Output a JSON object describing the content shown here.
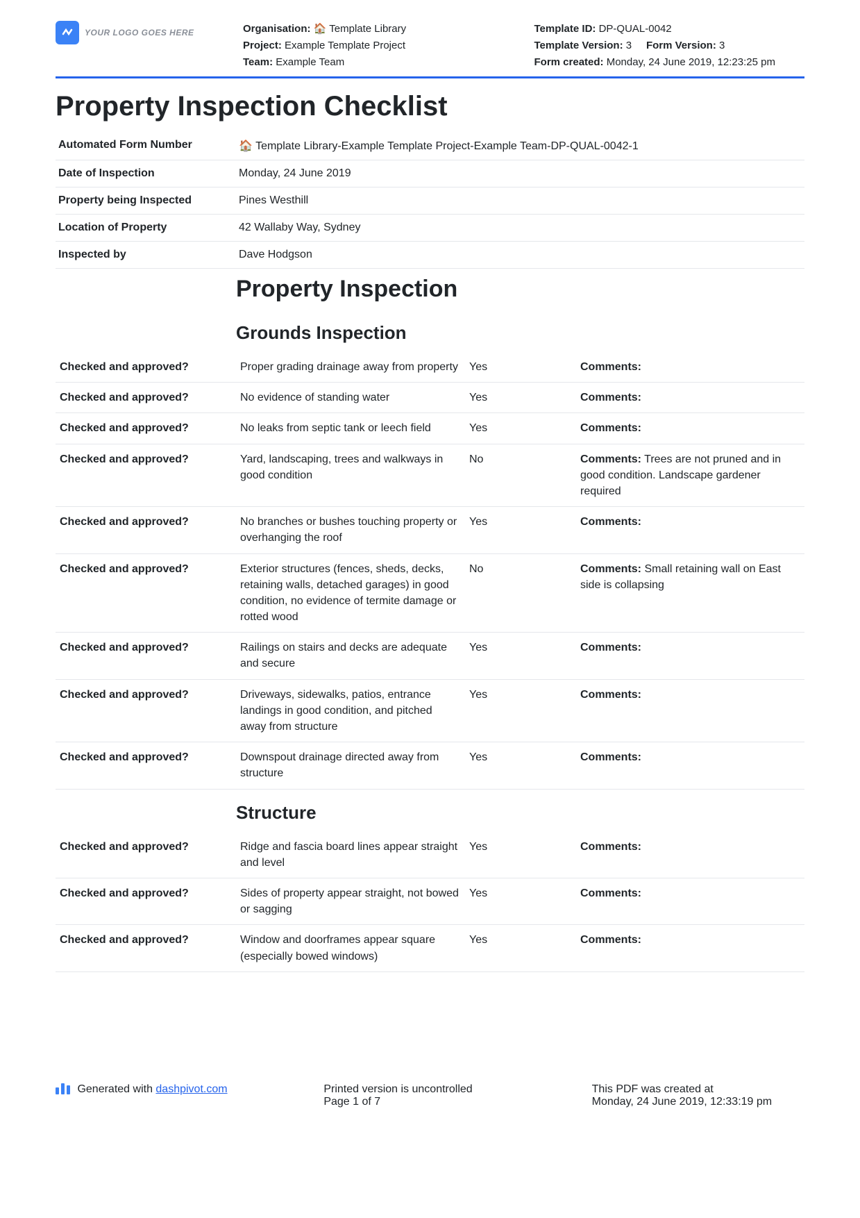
{
  "header": {
    "logo_text": "YOUR LOGO GOES HERE",
    "org_label": "Organisation:",
    "org_value": "🏠 Template Library",
    "project_label": "Project:",
    "project_value": "Example Template Project",
    "team_label": "Team:",
    "team_value": "Example Team",
    "template_id_label": "Template ID:",
    "template_id_value": "DP-QUAL-0042",
    "template_ver_label": "Template Version:",
    "template_ver_value": "3",
    "form_ver_label": "Form Version:",
    "form_ver_value": "3",
    "form_created_label": "Form created:",
    "form_created_value": "Monday, 24 June 2019, 12:23:25 pm"
  },
  "title": "Property Inspection Checklist",
  "info": [
    {
      "label": "Automated Form Number",
      "value": "🏠 Template Library-Example Template Project-Example Team-DP-QUAL-0042-1"
    },
    {
      "label": "Date of Inspection",
      "value": "Monday, 24 June 2019"
    },
    {
      "label": "Property being Inspected",
      "value": "Pines Westhill"
    },
    {
      "label": "Location of Property",
      "value": "42 Wallaby Way, Sydney"
    },
    {
      "label": "Inspected by",
      "value": "Dave Hodgson"
    }
  ],
  "section_main": "Property Inspection",
  "section_grounds": "Grounds Inspection",
  "section_structure": "Structure",
  "col1_label": "Checked and approved?",
  "comments_label": "Comments:",
  "grounds": [
    {
      "item": "Proper grading drainage away from property",
      "answer": "Yes",
      "comment": ""
    },
    {
      "item": "No evidence of standing water",
      "answer": "Yes",
      "comment": ""
    },
    {
      "item": "No leaks from septic tank or leech field",
      "answer": "Yes",
      "comment": ""
    },
    {
      "item": "Yard, landscaping, trees and walkways in good condition",
      "answer": "No",
      "comment": " Trees are not pruned and in good condition. Landscape gardener required"
    },
    {
      "item": "No branches or bushes touching property or overhanging the roof",
      "answer": "Yes",
      "comment": ""
    },
    {
      "item": "Exterior structures (fences, sheds, decks, retaining walls, detached garages) in good condition, no evidence of termite damage or rotted wood",
      "answer": "No",
      "comment": " Small retaining wall on East side is collapsing"
    },
    {
      "item": "Railings on stairs and decks are adequate and secure",
      "answer": "Yes",
      "comment": ""
    },
    {
      "item": "Driveways, sidewalks, patios, entrance landings in good condition, and pitched away from structure",
      "answer": "Yes",
      "comment": ""
    },
    {
      "item": "Downspout drainage directed away from structure",
      "answer": "Yes",
      "comment": ""
    }
  ],
  "structure": [
    {
      "item": "Ridge and fascia board lines appear straight and level",
      "answer": "Yes",
      "comment": ""
    },
    {
      "item": "Sides of property appear straight, not bowed or sagging",
      "answer": "Yes",
      "comment": ""
    },
    {
      "item": "Window and doorframes appear square (especially bowed windows)",
      "answer": "Yes",
      "comment": ""
    }
  ],
  "footer": {
    "gen_prefix": "Generated with ",
    "gen_link": "dashpivot.com",
    "uncontrolled": "Printed version is uncontrolled",
    "page": "Page 1 of 7",
    "created_label": "This PDF was created at",
    "created_value": "Monday, 24 June 2019, 12:33:19 pm"
  },
  "style": {
    "accent": "#2563eb",
    "text": "#212529",
    "border": "#e5e7eb",
    "logo_bg": "#3b82f6",
    "background": "#ffffff"
  }
}
